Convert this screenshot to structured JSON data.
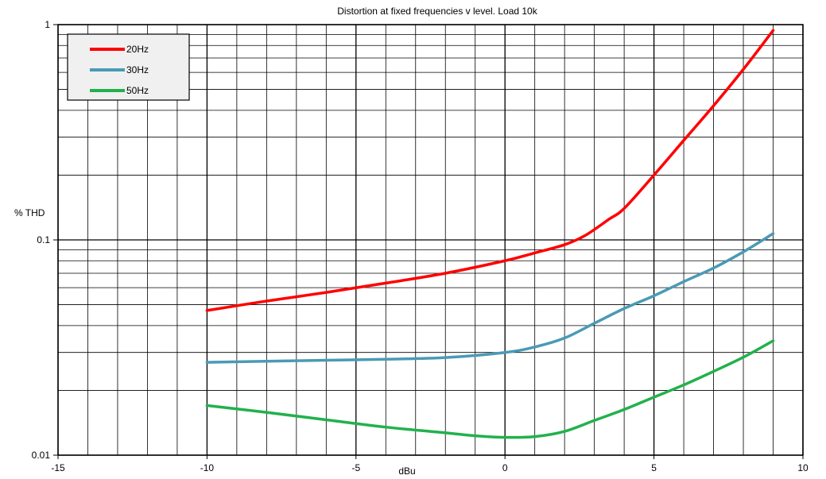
{
  "chart_data": {
    "type": "line",
    "title": "Distortion at fixed frequencies v level. Load 10k",
    "xlabel": "dBu",
    "ylabel": "% THD",
    "xlim": [
      -15,
      10
    ],
    "ylim": [
      0.01,
      1
    ],
    "y_scale": "log",
    "x_ticks": [
      -15,
      -10,
      -5,
      0,
      5,
      10
    ],
    "x_tick_labels": [
      "-15",
      "-10",
      "-5",
      "0",
      "5",
      "10"
    ],
    "y_ticks": [
      0.01,
      0.1,
      1
    ],
    "y_tick_labels": [
      "0.01",
      "0.1",
      "1"
    ],
    "grid": true,
    "legend_position": "top-left",
    "series": [
      {
        "name": "20Hz",
        "color": "#ff0000",
        "x": [
          -10,
          -8,
          -6,
          -4,
          -2,
          0,
          1,
          2,
          2.7,
          3.5,
          4,
          5,
          6,
          7,
          8,
          9
        ],
        "y": [
          0.047,
          0.052,
          0.057,
          0.063,
          0.07,
          0.08,
          0.087,
          0.095,
          0.105,
          0.125,
          0.14,
          0.2,
          0.29,
          0.42,
          0.62,
          0.94
        ]
      },
      {
        "name": "30Hz",
        "color": "#4a9ab5",
        "x": [
          -10,
          -8,
          -6,
          -4,
          -2,
          0,
          1,
          2,
          3,
          4,
          5,
          6,
          7,
          8,
          9
        ],
        "y": [
          0.027,
          0.0273,
          0.0276,
          0.0279,
          0.0284,
          0.03,
          0.0318,
          0.035,
          0.041,
          0.048,
          0.055,
          0.064,
          0.074,
          0.088,
          0.107
        ]
      },
      {
        "name": "50Hz",
        "color": "#22b14c",
        "x": [
          -10,
          -8,
          -6,
          -4,
          -2,
          -1,
          0,
          1,
          2,
          3,
          4,
          5,
          6,
          7,
          8,
          9
        ],
        "y": [
          0.017,
          0.0158,
          0.0146,
          0.0135,
          0.0127,
          0.0123,
          0.0121,
          0.0122,
          0.0129,
          0.0145,
          0.0163,
          0.0186,
          0.0212,
          0.0245,
          0.0285,
          0.034
        ]
      }
    ]
  }
}
